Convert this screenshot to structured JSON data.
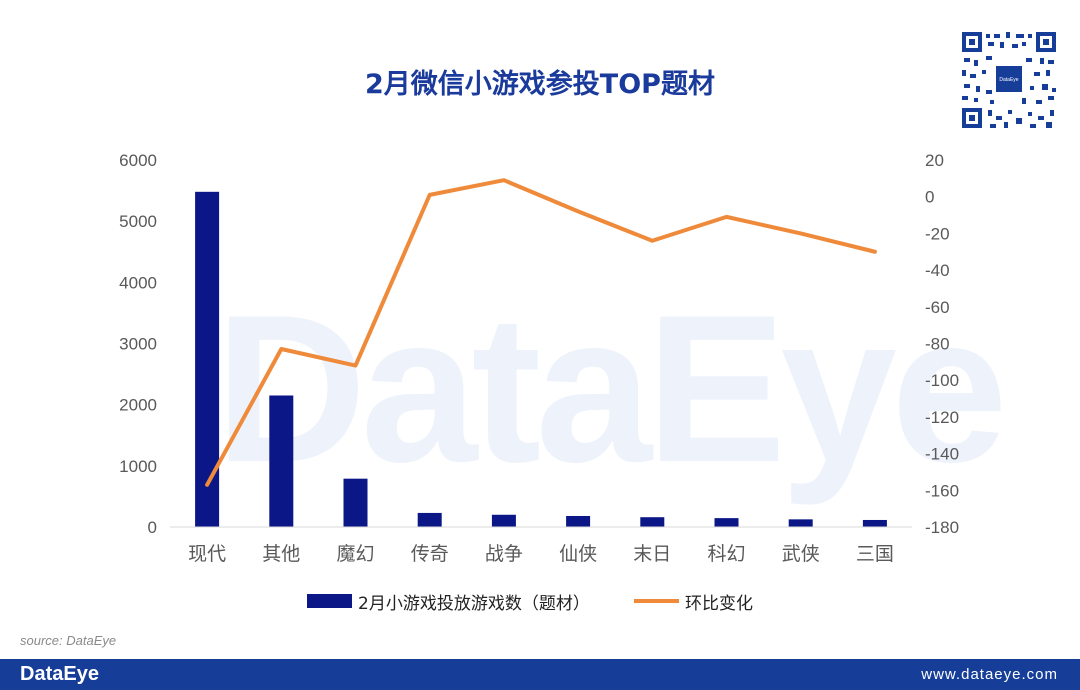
{
  "title": "2月微信小游戏参投TOP题材",
  "watermark": "DataEye",
  "source": "source: DataEye",
  "footer": {
    "logo": "DataEye",
    "url": "www.dataeye.com"
  },
  "qr": {
    "center_label": "DataEye"
  },
  "colors": {
    "bar": "#0b1687",
    "line": "#ee8a3a",
    "title": "#1a3a9c",
    "footer": "#163e99"
  },
  "chart_data": {
    "type": "bar",
    "title": "2月微信小游戏参投TOP题材",
    "categories": [
      "现代",
      "其他",
      "魔幻",
      "传奇",
      "战争",
      "仙侠",
      "末日",
      "科幻",
      "武侠",
      "三国"
    ],
    "series": [
      {
        "name": "2月小游戏投放游戏数（题材）",
        "type": "bar",
        "axis": "left",
        "values": [
          5480,
          2150,
          790,
          230,
          200,
          180,
          160,
          145,
          125,
          115
        ]
      },
      {
        "name": "环比变化",
        "type": "line",
        "axis": "right",
        "values": [
          -157,
          -83,
          -92,
          1,
          9,
          -8,
          -24,
          -11,
          -20,
          -30
        ]
      }
    ],
    "ylim_left": [
      0,
      6000
    ],
    "yticks_left": [
      "0",
      "1000",
      "2000",
      "3000",
      "4000",
      "5000",
      "6000"
    ],
    "ylim_right": [
      -180,
      20
    ],
    "yticks_right": [
      "-180",
      "-160",
      "-140",
      "-120",
      "-100",
      "-80",
      "-60",
      "-40",
      "-20",
      "0",
      "20"
    ],
    "grid": false,
    "legend_position": "bottom"
  }
}
